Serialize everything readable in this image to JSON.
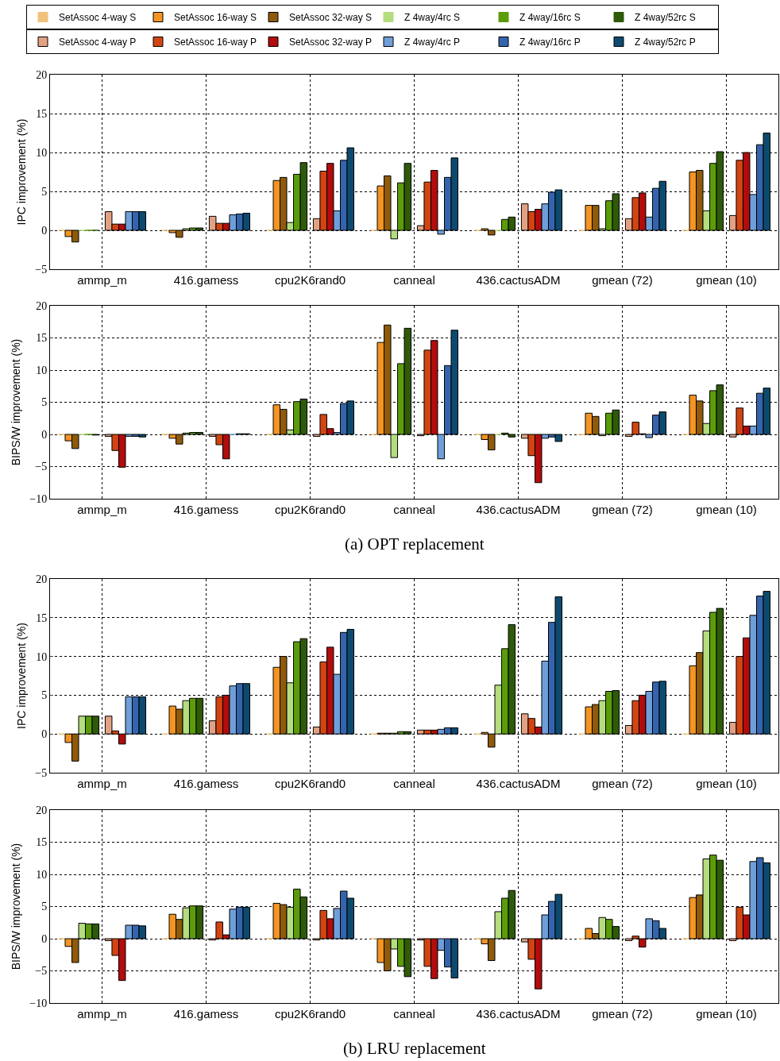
{
  "chart_data": [
    {
      "type": "bar",
      "ylabel": "IPC improvement (%)",
      "categories": [
        "ammp_m",
        "416.gamess",
        "cpu2K6rand0",
        "canneal",
        "436.cactusADM",
        "gmean (72)",
        "gmean (10)"
      ],
      "ylim": [
        -5,
        20
      ],
      "yticks": [
        -5,
        0,
        5,
        10,
        15,
        20
      ],
      "grid": true,
      "legend": "top",
      "series": [
        {
          "name": "SetAssoc 4-way S",
          "color": "#f0c27a",
          "values": [
            0,
            0,
            0,
            0,
            0,
            0,
            0
          ]
        },
        {
          "name": "SetAssoc 16-way S",
          "color": "#f39423",
          "values": [
            -0.8,
            -0.3,
            6.4,
            5.7,
            0.2,
            3.2,
            7.5
          ]
        },
        {
          "name": "SetAssoc 32-way S",
          "color": "#8f5a0a",
          "values": [
            -1.5,
            -0.9,
            6.8,
            7.0,
            -0.6,
            3.2,
            7.7
          ]
        },
        {
          "name": "Z 4way/4rc S",
          "color": "#b4dd7f",
          "values": [
            0,
            0.2,
            1.0,
            -1.1,
            0,
            0.2,
            2.5
          ]
        },
        {
          "name": "Z 4way/16rc S",
          "color": "#5b9c0b",
          "values": [
            0,
            0.3,
            7.2,
            6.1,
            1.4,
            3.8,
            8.6
          ]
        },
        {
          "name": "Z 4way/52rc S",
          "color": "#2e5a0a",
          "values": [
            0,
            0.3,
            8.7,
            8.6,
            1.7,
            4.7,
            10.1
          ]
        },
        {
          "name": "SetAssoc 4-way P",
          "color": "#e3a184",
          "values": [
            2.4,
            1.8,
            1.5,
            0.6,
            3.4,
            1.5,
            1.9
          ]
        },
        {
          "name": "SetAssoc 16-way P",
          "color": "#d24513",
          "values": [
            0.8,
            0.9,
            7.6,
            6.2,
            2.4,
            4.2,
            9.0
          ]
        },
        {
          "name": "SetAssoc 32-way P",
          "color": "#b20c0c",
          "values": [
            0.8,
            0.9,
            8.6,
            7.7,
            2.7,
            4.8,
            10.0
          ]
        },
        {
          "name": "Z 4way/4rc P",
          "color": "#6f9fd8",
          "values": [
            2.4,
            2.0,
            2.5,
            -0.5,
            3.4,
            1.7,
            4.6
          ]
        },
        {
          "name": "Z 4way/16rc P",
          "color": "#3464ad",
          "values": [
            2.4,
            2.1,
            9.0,
            6.8,
            4.9,
            5.4,
            11.0
          ]
        },
        {
          "name": "Z 4way/52rc P",
          "color": "#0d4a70",
          "values": [
            2.4,
            2.2,
            10.6,
            9.3,
            5.2,
            6.3,
            12.5
          ]
        }
      ]
    },
    {
      "type": "bar",
      "ylabel": "BIPS/W improvement (%)",
      "categories": [
        "ammp_m",
        "416.gamess",
        "cpu2K6rand0",
        "canneal",
        "436.cactusADM",
        "gmean (72)",
        "gmean (10)"
      ],
      "ylim": [
        -10,
        20
      ],
      "yticks": [
        -10,
        -5,
        0,
        5,
        10,
        15,
        20
      ],
      "grid": true,
      "annotations": [
        "(a) OPT replacement"
      ],
      "series": [
        {
          "color": "#f0c27a",
          "values": [
            0,
            0,
            0,
            0,
            0,
            0,
            0
          ]
        },
        {
          "color": "#f39423",
          "values": [
            -1.0,
            -0.6,
            4.6,
            14.3,
            -0.8,
            3.3,
            6.1
          ]
        },
        {
          "color": "#8f5a0a",
          "values": [
            -2.2,
            -1.5,
            3.9,
            17.0,
            -2.4,
            2.8,
            5.2
          ]
        },
        {
          "color": "#b4dd7f",
          "values": [
            0,
            0.2,
            0.7,
            -3.6,
            0,
            -0.2,
            1.7
          ]
        },
        {
          "color": "#5b9c0b",
          "values": [
            0,
            0.3,
            5.1,
            11.0,
            0.2,
            3.3,
            6.8
          ]
        },
        {
          "color": "#2e5a0a",
          "values": [
            -0.1,
            0.3,
            5.5,
            16.5,
            -0.4,
            3.8,
            7.7
          ]
        },
        {
          "color": "#e3a184",
          "values": [
            -0.3,
            -0.3,
            -0.3,
            -0.2,
            -0.6,
            -0.3,
            -0.4
          ]
        },
        {
          "color": "#d24513",
          "values": [
            -2.5,
            -1.6,
            3.1,
            13.1,
            -3.3,
            1.9,
            4.1
          ]
        },
        {
          "color": "#b20c0c",
          "values": [
            -5.1,
            -3.8,
            0.9,
            14.6,
            -7.5,
            0.1,
            1.3
          ]
        },
        {
          "color": "#6f9fd8",
          "values": [
            -0.3,
            0,
            0.3,
            -3.8,
            -0.6,
            -0.5,
            1.3
          ]
        },
        {
          "color": "#3464ad",
          "values": [
            -0.3,
            0.1,
            4.8,
            10.7,
            -0.4,
            3.0,
            6.4
          ]
        },
        {
          "color": "#0d4a70",
          "values": [
            -0.4,
            0.1,
            5.2,
            16.2,
            -1.1,
            3.5,
            7.2
          ]
        }
      ]
    },
    {
      "type": "bar",
      "ylabel": "IPC improvement (%)",
      "categories": [
        "ammp_m",
        "416.gamess",
        "cpu2K6rand0",
        "canneal",
        "436.cactusADM",
        "gmean (72)",
        "gmean (10)"
      ],
      "ylim": [
        -5,
        20
      ],
      "yticks": [
        -5,
        0,
        5,
        10,
        15,
        20
      ],
      "grid": true,
      "series": [
        {
          "color": "#f0c27a",
          "values": [
            0,
            0,
            0,
            0,
            0,
            0,
            0
          ]
        },
        {
          "color": "#f39423",
          "values": [
            -1.1,
            3.6,
            8.6,
            0.1,
            0.2,
            3.5,
            8.8
          ]
        },
        {
          "color": "#8f5a0a",
          "values": [
            -3.5,
            3.2,
            10.0,
            0.1,
            -1.7,
            3.8,
            10.5
          ]
        },
        {
          "color": "#b4dd7f",
          "values": [
            2.3,
            4.3,
            6.6,
            0.1,
            6.3,
            4.3,
            13.3
          ]
        },
        {
          "color": "#5b9c0b",
          "values": [
            2.3,
            4.6,
            11.9,
            0.3,
            11.0,
            5.5,
            15.7
          ]
        },
        {
          "color": "#2e5a0a",
          "values": [
            2.3,
            4.6,
            12.3,
            0.3,
            14.1,
            5.6,
            16.2
          ]
        },
        {
          "color": "#e3a184",
          "values": [
            2.3,
            1.7,
            0.9,
            0.5,
            2.6,
            1.1,
            1.5
          ]
        },
        {
          "color": "#d24513",
          "values": [
            0.4,
            4.8,
            9.3,
            0.5,
            2.0,
            4.3,
            10.0
          ]
        },
        {
          "color": "#b20c0c",
          "values": [
            -1.3,
            5.0,
            11.2,
            0.5,
            0.9,
            5.0,
            12.4
          ]
        },
        {
          "color": "#6f9fd8",
          "values": [
            4.8,
            6.2,
            7.7,
            0.6,
            9.4,
            5.5,
            15.3
          ]
        },
        {
          "color": "#3464ad",
          "values": [
            4.8,
            6.5,
            13.1,
            0.8,
            14.4,
            6.7,
            17.8
          ]
        },
        {
          "color": "#0d4a70",
          "values": [
            4.8,
            6.5,
            13.5,
            0.8,
            17.7,
            6.8,
            18.4
          ]
        }
      ]
    },
    {
      "type": "bar",
      "ylabel": "BIPS/W improvement (%)",
      "categories": [
        "ammp_m",
        "416.gamess",
        "cpu2K6rand0",
        "canneal",
        "436.cactusADM",
        "gmean (72)",
        "gmean (10)"
      ],
      "ylim": [
        -10,
        20
      ],
      "yticks": [
        -10,
        -5,
        0,
        5,
        10,
        15,
        20
      ],
      "grid": true,
      "annotations": [
        "(b) LRU replacement"
      ],
      "series": [
        {
          "color": "#f0c27a",
          "values": [
            0,
            0,
            0,
            0,
            0,
            0,
            0
          ]
        },
        {
          "color": "#f39423",
          "values": [
            -1.2,
            3.8,
            5.5,
            -3.7,
            -0.8,
            1.6,
            6.4
          ]
        },
        {
          "color": "#8f5a0a",
          "values": [
            -3.7,
            3.0,
            5.3,
            -5.0,
            -3.4,
            0.8,
            6.8
          ]
        },
        {
          "color": "#b4dd7f",
          "values": [
            2.4,
            4.8,
            4.9,
            -1.6,
            4.2,
            3.3,
            12.4
          ]
        },
        {
          "color": "#5b9c0b",
          "values": [
            2.3,
            5.1,
            7.7,
            -4.3,
            6.3,
            3.0,
            13.0
          ]
        },
        {
          "color": "#2e5a0a",
          "values": [
            2.3,
            5.1,
            6.5,
            -5.9,
            7.5,
            1.9,
            12.2
          ]
        },
        {
          "color": "#e3a184",
          "values": [
            -0.3,
            -0.2,
            -0.2,
            -0.2,
            -0.5,
            -0.3,
            -0.3
          ]
        },
        {
          "color": "#d24513",
          "values": [
            -2.6,
            2.6,
            4.4,
            -4.3,
            -3.2,
            0.4,
            4.9
          ]
        },
        {
          "color": "#b20c0c",
          "values": [
            -6.5,
            0.6,
            3.1,
            -6.2,
            -7.8,
            -1.3,
            3.7
          ]
        },
        {
          "color": "#6f9fd8",
          "values": [
            2.1,
            4.6,
            4.7,
            -1.8,
            3.7,
            3.1,
            12.0
          ]
        },
        {
          "color": "#3464ad",
          "values": [
            2.1,
            4.9,
            7.4,
            -4.4,
            5.8,
            2.8,
            12.6
          ]
        },
        {
          "color": "#0d4a70",
          "values": [
            2.0,
            4.9,
            6.3,
            -6.1,
            6.9,
            1.6,
            11.8
          ]
        }
      ]
    }
  ]
}
